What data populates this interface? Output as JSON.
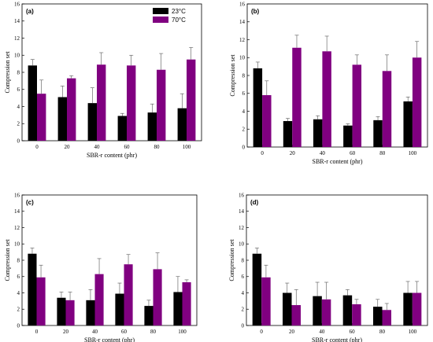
{
  "colors": {
    "series_23": "#000000",
    "series_70": "#800080"
  },
  "legend": [
    "23°C",
    "70°C"
  ],
  "chart_data": [
    {
      "type": "bar",
      "panel_label": "(a)",
      "categories": [
        "0",
        "20",
        "40",
        "60",
        "80",
        "100"
      ],
      "xlabel": "SBR-r content (phr)",
      "ylabel": "Compression set",
      "ylim": [
        0,
        16
      ],
      "yticks": [
        "0",
        "2",
        "4",
        "6",
        "8",
        "10",
        "12",
        "14",
        "16"
      ],
      "legend_position": "top-right",
      "series": [
        {
          "name": "23°C",
          "values": [
            8.8,
            5.1,
            4.4,
            2.9,
            3.3,
            3.8
          ],
          "errors": [
            0.7,
            1.3,
            1.8,
            0.3,
            1.0,
            1.7
          ]
        },
        {
          "name": "70°C",
          "values": [
            5.5,
            7.3,
            8.9,
            8.8,
            8.3,
            9.5
          ],
          "errors": [
            1.6,
            0.3,
            1.4,
            1.2,
            1.9,
            1.4
          ]
        }
      ]
    },
    {
      "type": "bar",
      "panel_label": "(b)",
      "categories": [
        "0",
        "20",
        "40",
        "60",
        "80",
        "100"
      ],
      "xlabel": "SBR-r content (phr)",
      "ylabel": "Compression set",
      "ylim": [
        0,
        16
      ],
      "yticks": [
        "0",
        "2",
        "4",
        "6",
        "8",
        "10",
        "12",
        "14",
        "16"
      ],
      "series": [
        {
          "name": "23°C",
          "values": [
            8.8,
            2.9,
            3.1,
            2.4,
            3.0,
            5.1
          ],
          "errors": [
            0.7,
            0.3,
            0.4,
            0.2,
            0.4,
            0.5
          ]
        },
        {
          "name": "70°C",
          "values": [
            5.8,
            11.1,
            10.7,
            9.2,
            8.5,
            10.0
          ],
          "errors": [
            1.6,
            1.4,
            1.7,
            1.1,
            1.8,
            1.8
          ]
        }
      ]
    },
    {
      "type": "bar",
      "panel_label": "(c)",
      "categories": [
        "0",
        "20",
        "40",
        "60",
        "80",
        "100"
      ],
      "xlabel": "SBR-r content (phr)",
      "ylabel": "Compression set",
      "ylim": [
        0,
        16
      ],
      "yticks": [
        "0",
        "2",
        "4",
        "6",
        "8",
        "10",
        "12",
        "14",
        "16"
      ],
      "series": [
        {
          "name": "23°C",
          "values": [
            8.8,
            3.4,
            3.1,
            3.9,
            2.4,
            4.1
          ],
          "errors": [
            0.7,
            0.7,
            1.3,
            1.3,
            0.7,
            1.9
          ]
        },
        {
          "name": "70°C",
          "values": [
            5.9,
            3.1,
            6.3,
            7.5,
            6.9,
            5.3
          ],
          "errors": [
            1.5,
            1.0,
            1.9,
            1.2,
            2.0,
            0.3
          ]
        }
      ]
    },
    {
      "type": "bar",
      "panel_label": "(d)",
      "categories": [
        "0",
        "20",
        "40",
        "60",
        "80",
        "100"
      ],
      "xlabel": "SBR-r content (phr)",
      "ylabel": "Compression set",
      "ylim": [
        0,
        16
      ],
      "yticks": [
        "0",
        "2",
        "4",
        "6",
        "8",
        "10",
        "12",
        "14",
        "16"
      ],
      "series": [
        {
          "name": "23°C",
          "values": [
            8.8,
            4.0,
            3.6,
            3.7,
            2.3,
            4.0
          ],
          "errors": [
            0.7,
            1.2,
            1.7,
            0.7,
            0.9,
            1.4
          ]
        },
        {
          "name": "70°C",
          "values": [
            5.9,
            2.5,
            3.2,
            2.6,
            1.9,
            4.0
          ],
          "errors": [
            1.5,
            1.9,
            2.1,
            0.6,
            0.8,
            1.4
          ]
        }
      ]
    }
  ]
}
